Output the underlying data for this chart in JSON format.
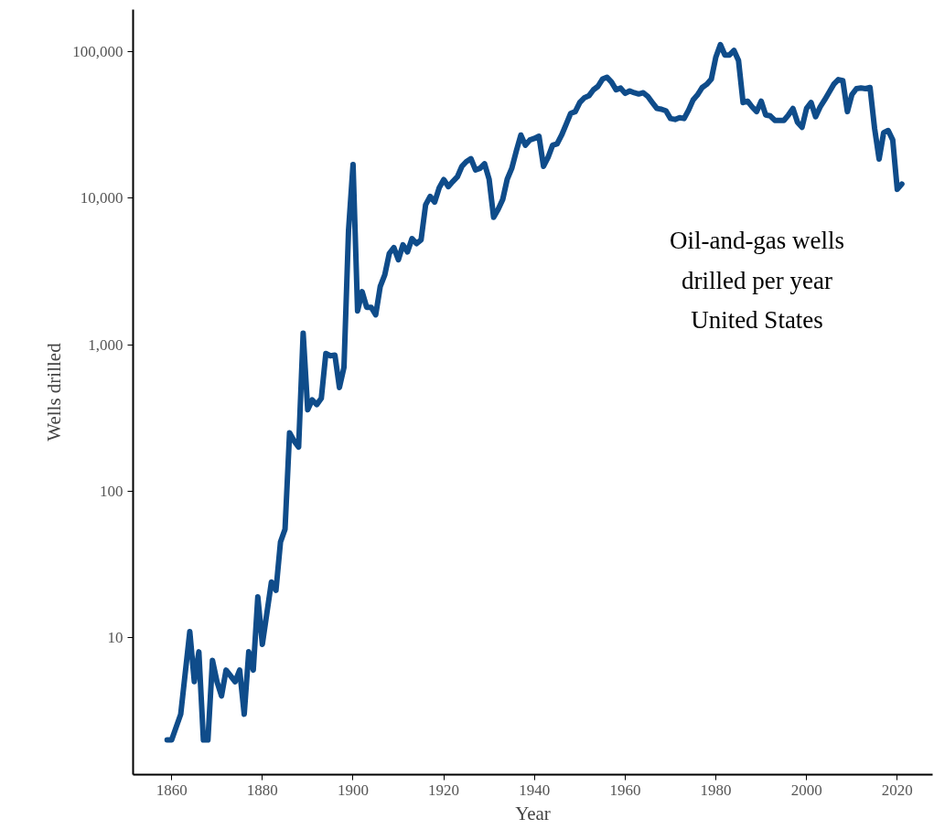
{
  "chart_data": {
    "type": "line",
    "title": "Oil-and-gas wells\ndrilled per year\nUnited States",
    "xlabel": "Year",
    "ylabel": "Wells drilled",
    "log": "y",
    "grid": false,
    "marker": "none",
    "line_style": "solid",
    "xlim": [
      1851.5,
      2027.8
    ],
    "ylim": [
      1.16,
      194000
    ],
    "xticks": [
      1860,
      1880,
      1900,
      1920,
      1940,
      1960,
      1980,
      2000,
      2020
    ],
    "yticks": [
      {
        "value": 10,
        "label": "10"
      },
      {
        "value": 100,
        "label": "100"
      },
      {
        "value": 1000,
        "label": "1,000"
      },
      {
        "value": 10000,
        "label": "10,000"
      },
      {
        "value": 100000,
        "label": "100,000"
      }
    ],
    "x": [
      1859,
      1860,
      1862,
      1864,
      1865,
      1866,
      1867,
      1868,
      1869,
      1870,
      1871,
      1872,
      1874,
      1875,
      1876,
      1877,
      1878,
      1879,
      1880,
      1882,
      1883,
      1884,
      1885,
      1886,
      1887,
      1888,
      1889,
      1890,
      1891,
      1892,
      1893,
      1894,
      1895,
      1896,
      1897,
      1898,
      1899,
      1900,
      1901,
      1902,
      1903,
      1904,
      1905,
      1906,
      1907,
      1908,
      1909,
      1910,
      1911,
      1912,
      1913,
      1914,
      1915,
      1916,
      1917,
      1918,
      1919,
      1920,
      1921,
      1922,
      1923,
      1924,
      1925,
      1926,
      1927,
      1928,
      1929,
      1930,
      1931,
      1932,
      1933,
      1934,
      1935,
      1936,
      1937,
      1938,
      1939,
      1940,
      1941,
      1942,
      1943,
      1944,
      1945,
      1946,
      1947,
      1948,
      1949,
      1950,
      1951,
      1952,
      1953,
      1954,
      1955,
      1956,
      1957,
      1958,
      1959,
      1960,
      1961,
      1962,
      1963,
      1964,
      1965,
      1966,
      1967,
      1968,
      1969,
      1970,
      1971,
      1972,
      1973,
      1974,
      1975,
      1976,
      1977,
      1978,
      1979,
      1980,
      1981,
      1982,
      1983,
      1984,
      1985,
      1986,
      1987,
      1988,
      1989,
      1990,
      1991,
      1992,
      1993,
      1994,
      1995,
      1996,
      1997,
      1998,
      1999,
      2000,
      2001,
      2002,
      2003,
      2004,
      2005,
      2006,
      2007,
      2008,
      2009,
      2010,
      2011,
      2012,
      2013,
      2014,
      2015,
      2016,
      2017,
      2018,
      2019,
      2020,
      2021
    ],
    "series": [
      {
        "color": "#0f4c8a",
        "values": [
          2,
          2,
          3,
          11,
          5,
          8,
          2,
          2,
          7,
          5,
          4,
          6,
          5,
          6,
          3,
          8,
          6,
          19,
          9,
          24,
          21,
          45,
          55,
          250,
          220,
          200,
          1200,
          360,
          420,
          390,
          430,
          870,
          840,
          850,
          510,
          700,
          6000,
          17000,
          1700,
          2300,
          1800,
          1800,
          1600,
          2500,
          3000,
          4200,
          4600,
          3800,
          4800,
          4300,
          5300,
          4900,
          5200,
          9000,
          10300,
          9400,
          11800,
          13400,
          12000,
          13000,
          14000,
          16500,
          17800,
          18600,
          15600,
          16000,
          17200,
          13500,
          7400,
          8400,
          9800,
          13500,
          16000,
          21000,
          27000,
          23000,
          25000,
          25600,
          26500,
          16500,
          19000,
          23000,
          23500,
          27000,
          32000,
          38000,
          39000,
          45000,
          48500,
          50000,
          55000,
          58000,
          65000,
          67000,
          62000,
          55000,
          56500,
          52000,
          54000,
          52500,
          51500,
          52500,
          49500,
          45000,
          41000,
          40500,
          39500,
          35000,
          34500,
          35500,
          35000,
          40000,
          47000,
          51000,
          57000,
          60000,
          65000,
          92000,
          112000,
          95000,
          95000,
          102000,
          87000,
          45000,
          46000,
          42000,
          39000,
          46000,
          37000,
          36500,
          34000,
          34000,
          34000,
          37000,
          41000,
          33000,
          30500,
          41000,
          45000,
          36000,
          42000,
          47000,
          53000,
          60000,
          64500,
          63500,
          39000,
          51000,
          56000,
          56500,
          56000,
          57000,
          30000,
          18500,
          28000,
          29000,
          25000,
          11500,
          12500
        ]
      }
    ]
  }
}
